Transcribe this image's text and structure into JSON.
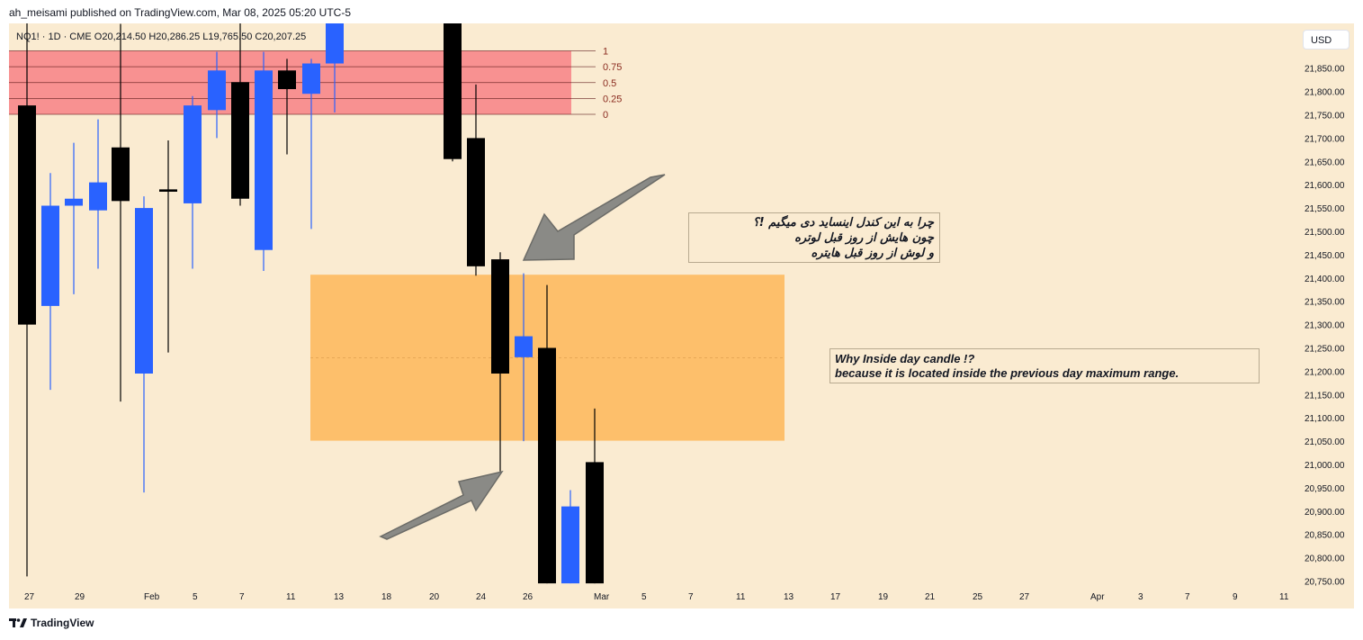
{
  "header": {
    "publisher_text": "ah_meisami published on TradingView.com, Mar 08, 2025 05:20 UTC-5"
  },
  "symbol_bar": {
    "text": "NQ1! · 1D · CME   O20,214.50   H20,286.25   L19,765.50   C20,207.25"
  },
  "currency": "USD",
  "footer": {
    "brand": "TradingView"
  },
  "notes": {
    "persian": [
      "چرا به این کندل اینساید دی میگیم !؟",
      "چون هایش از روز قبل لوتره",
      "و لوش از روز قبل هایتره"
    ],
    "english": [
      "Why Inside day candle !?",
      "because it is located inside the previous day maximum range."
    ]
  },
  "colors": {
    "bull": "#2962ff",
    "bear": "#000000",
    "fib_zone": "#f7878a",
    "inside_zone": "#fdba5f",
    "background": "#faebd1"
  },
  "chart_data": {
    "type": "candlestick",
    "ylim": [
      20730,
      21930
    ],
    "y_ticks": [
      20750,
      20800,
      20850,
      20900,
      20950,
      21000,
      21050,
      21100,
      21150,
      21200,
      21250,
      21300,
      21350,
      21400,
      21450,
      21500,
      21550,
      21600,
      21650,
      21700,
      21750,
      21800,
      21850
    ],
    "y_tick_labels": [
      "20,750.00",
      "20,800.00",
      "20,850.00",
      "20,900.00",
      "20,950.00",
      "21,000.00",
      "21,050.00",
      "21,100.00",
      "21,150.00",
      "21,200.00",
      "21,250.00",
      "21,300.00",
      "21,350.00",
      "21,400.00",
      "21,450.00",
      "21,500.00",
      "21,550.00",
      "21,600.00",
      "21,650.00",
      "21,700.00",
      "21,750.00",
      "21,800.00",
      "21,850.00"
    ],
    "x_labels": [
      "27",
      "29",
      "Feb",
      "5",
      "7",
      "11",
      "13",
      "18",
      "20",
      "24",
      "26",
      "Mar",
      "5",
      "7",
      "11",
      "13",
      "17",
      "19",
      "21",
      "25",
      "27",
      "Apr",
      "3",
      "7",
      "9",
      "11"
    ],
    "candles": [
      {
        "date": "Jan 27",
        "open": 21770,
        "high": 21960,
        "low": 20760,
        "close": 21300
      },
      {
        "date": "Jan 28",
        "open": 21340,
        "high": 21625,
        "low": 21160,
        "close": 21555
      },
      {
        "date": "Jan 29",
        "open": 21555,
        "high": 21690,
        "low": 21365,
        "close": 21570
      },
      {
        "date": "Jan 30",
        "open": 21545,
        "high": 21740,
        "low": 21420,
        "close": 21605
      },
      {
        "date": "Jan 31",
        "open": 21680,
        "high": 21945,
        "low": 21135,
        "close": 21565
      },
      {
        "date": "Feb 3",
        "open": 21195,
        "high": 21575,
        "low": 20940,
        "close": 21550
      },
      {
        "date": "Feb 4",
        "open": 21590,
        "high": 21695,
        "low": 21240,
        "close": 21585
      },
      {
        "date": "Feb 5",
        "open": 21560,
        "high": 21790,
        "low": 21420,
        "close": 21770
      },
      {
        "date": "Feb 6",
        "open": 21760,
        "high": 21885,
        "low": 21700,
        "close": 21845
      },
      {
        "date": "Feb 7",
        "open": 21820,
        "high": 21985,
        "low": 21555,
        "close": 21570
      },
      {
        "date": "Feb 10",
        "open": 21460,
        "high": 21885,
        "low": 21415,
        "close": 21845
      },
      {
        "date": "Feb 11",
        "open": 21845,
        "high": 21870,
        "low": 21665,
        "close": 21805
      },
      {
        "date": "Feb 12",
        "open": 21795,
        "high": 21870,
        "low": 21505,
        "close": 21860
      },
      {
        "date": "Feb 13",
        "open": 21860,
        "high": 22020,
        "low": 21755,
        "close": 21995
      },
      {
        "date": "Feb 21",
        "open": 21995,
        "high": 22060,
        "low": 21650,
        "close": 21655
      },
      {
        "date": "Feb 24",
        "open": 21700,
        "high": 21815,
        "low": 21405,
        "close": 21425
      },
      {
        "date": "Feb 25",
        "open": 21440,
        "high": 21455,
        "low": 20985,
        "close": 21195
      },
      {
        "date": "Feb 26",
        "open": 21230,
        "high": 21410,
        "low": 21050,
        "close": 21275
      },
      {
        "date": "Feb 27",
        "open": 21250,
        "high": 21385,
        "low": 20745,
        "close": 20745
      },
      {
        "date": "Feb 28",
        "open": 20745,
        "high": 20945,
        "low": 20745,
        "close": 20910
      },
      {
        "date": "Mar 3",
        "open": 21005,
        "high": 21120,
        "low": 20745,
        "close": 20745
      }
    ],
    "fib_levels": [
      {
        "level": "1",
        "price": 21887
      },
      {
        "level": "0.75",
        "price": 21853
      },
      {
        "level": "0.5",
        "price": 21819
      },
      {
        "level": "0.25",
        "price": 21785
      },
      {
        "level": "0",
        "price": 21751
      }
    ],
    "inside_range": {
      "top": 21407,
      "bottom": 21051,
      "mid": 21229
    }
  }
}
